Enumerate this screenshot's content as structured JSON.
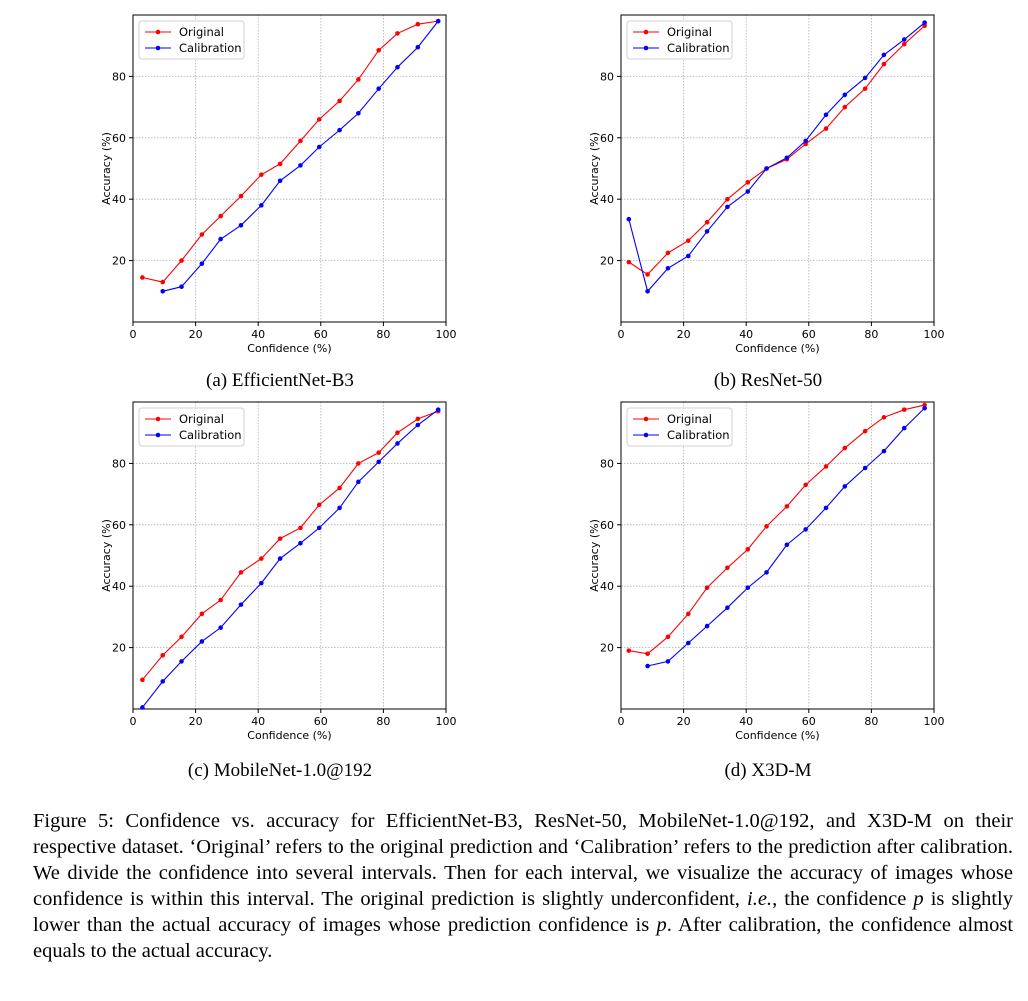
{
  "chart_data": [
    {
      "type": "line",
      "caption": "(a) EfficientNet-B3",
      "xlabel": "Confidence (%)",
      "ylabel": "Accuracy (%)",
      "xlim": [
        0,
        100
      ],
      "ylim": [
        0,
        100
      ],
      "xticks": [
        0,
        20,
        40,
        60,
        80,
        100
      ],
      "yticks": [
        20,
        40,
        60,
        80
      ],
      "grid": true,
      "legend": "top-left",
      "series": [
        {
          "name": "Original",
          "color": "#ff0000",
          "x": [
            3,
            9.5,
            15.5,
            22,
            28,
            34.5,
            41,
            47,
            53.5,
            59.5,
            66,
            72,
            78.5,
            84.5,
            91,
            97.5
          ],
          "y": [
            14.5,
            13,
            20,
            28.5,
            34.5,
            41,
            48,
            51.5,
            59,
            66,
            72,
            79,
            88.5,
            94,
            97,
            98
          ]
        },
        {
          "name": "Calibration",
          "color": "#0000ff",
          "x": [
            9.5,
            15.5,
            22,
            28,
            34.5,
            41,
            47,
            53.5,
            59.5,
            66,
            72,
            78.5,
            84.5,
            91,
            97.5
          ],
          "y": [
            10,
            11.5,
            19,
            27,
            31.5,
            38,
            46,
            51,
            57,
            62.5,
            68,
            76,
            83,
            89.5,
            98
          ]
        }
      ]
    },
    {
      "type": "line",
      "caption": "(b) ResNet-50",
      "xlabel": "Confidence (%)",
      "ylabel": "Accuracy (%)",
      "xlim": [
        0,
        100
      ],
      "ylim": [
        0,
        100
      ],
      "xticks": [
        0,
        20,
        40,
        60,
        80,
        100
      ],
      "yticks": [
        20,
        40,
        60,
        80
      ],
      "grid": true,
      "legend": "top-left",
      "series": [
        {
          "name": "Original",
          "color": "#ff0000",
          "x": [
            2.5,
            8.5,
            15,
            21.5,
            27.5,
            34,
            40.5,
            46.5,
            53,
            59,
            65.5,
            71.5,
            78,
            84,
            90.5,
            97
          ],
          "y": [
            19.5,
            15.5,
            22.5,
            26.5,
            32.5,
            40,
            45.5,
            50,
            53,
            58,
            63,
            70,
            76,
            84,
            90.5,
            96.5
          ]
        },
        {
          "name": "Calibration",
          "color": "#0000ff",
          "x": [
            2.5,
            8.5,
            15,
            21.5,
            27.5,
            34,
            40.5,
            46.5,
            53,
            59,
            65.5,
            71.5,
            78,
            84,
            90.5,
            97
          ],
          "y": [
            33.5,
            10,
            17.5,
            21.5,
            29.5,
            37.5,
            42.5,
            50,
            53.5,
            59,
            67.5,
            74,
            79.5,
            87,
            92,
            97.5
          ]
        }
      ]
    },
    {
      "type": "line",
      "caption": "(c) MobileNet-1.0@192",
      "xlabel": "Confidence (%)",
      "ylabel": "Accuracy (%)",
      "xlim": [
        0,
        100
      ],
      "ylim": [
        0,
        100
      ],
      "xticks": [
        0,
        20,
        40,
        60,
        80,
        100
      ],
      "yticks": [
        20,
        40,
        60,
        80
      ],
      "grid": true,
      "legend": "top-left",
      "series": [
        {
          "name": "Original",
          "color": "#ff0000",
          "x": [
            3,
            9.5,
            15.5,
            22,
            28,
            34.5,
            41,
            47,
            53.5,
            59.5,
            66,
            72,
            78.5,
            84.5,
            91,
            97.5
          ],
          "y": [
            9.5,
            17.5,
            23.5,
            31,
            35.5,
            44.5,
            49,
            55.5,
            59,
            66.5,
            72,
            80,
            83.5,
            90,
            94.5,
            97
          ]
        },
        {
          "name": "Calibration",
          "color": "#0000ff",
          "x": [
            3,
            9.5,
            15.5,
            22,
            28,
            34.5,
            41,
            47,
            53.5,
            59.5,
            66,
            72,
            78.5,
            84.5,
            91,
            97.5
          ],
          "y": [
            0.5,
            9,
            15.5,
            22,
            26.5,
            34,
            41,
            49,
            54,
            59,
            65.5,
            74,
            80.5,
            86.5,
            92.5,
            97.5
          ]
        }
      ]
    },
    {
      "type": "line",
      "caption": "(d) X3D-M",
      "xlabel": "Confidence (%)",
      "ylabel": "Accuracy (%)",
      "xlim": [
        0,
        100
      ],
      "ylim": [
        0,
        100
      ],
      "xticks": [
        0,
        20,
        40,
        60,
        80,
        100
      ],
      "yticks": [
        20,
        40,
        60,
        80
      ],
      "grid": true,
      "legend": "top-left",
      "series": [
        {
          "name": "Original",
          "color": "#ff0000",
          "x": [
            2.5,
            8.5,
            15,
            21.5,
            27.5,
            34,
            40.5,
            46.5,
            53,
            59,
            65.5,
            71.5,
            78,
            84,
            90.5,
            97
          ],
          "y": [
            19,
            18,
            23.5,
            31,
            39.5,
            46,
            52,
            59.5,
            66,
            73,
            79,
            85,
            90.5,
            95,
            97.5,
            99
          ]
        },
        {
          "name": "Calibration",
          "color": "#0000ff",
          "x": [
            8.5,
            15,
            21.5,
            27.5,
            34,
            40.5,
            46.5,
            53,
            59,
            65.5,
            71.5,
            78,
            84,
            90.5,
            97
          ],
          "y": [
            14,
            15.5,
            21.5,
            27,
            33,
            39.5,
            44.5,
            53.5,
            58.5,
            65.5,
            72.5,
            78.5,
            84,
            91.5,
            98
          ]
        }
      ]
    }
  ],
  "figure_caption": {
    "prefix": "Figure 5: Confidence vs. accuracy for EfficientNet-B3, ResNet-50, MobileNet-1.0@192, and X3D-M on their respective dataset. ‘Original’ refers to the original prediction and ‘Calibration’ refers to the prediction after calibration. We divide the confidence into several intervals. Then for each interval, we visualize the accuracy of images whose confidence is within this interval. The original prediction is slightly underconfident, ",
    "ie": "i.e.",
    "mid1": ", the confidence ",
    "p1": "p",
    "mid2": " is slightly lower than the actual accuracy of images whose prediction confidence is ",
    "p2": "p",
    "suffix": ". After calibration, the confidence almost equals to the actual accuracy."
  }
}
